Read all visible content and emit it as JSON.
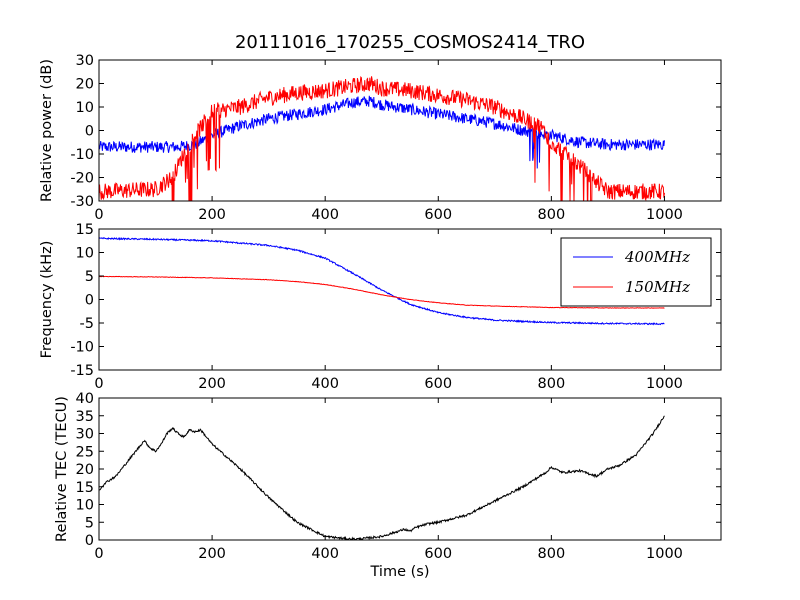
{
  "figure_title": "20111016_170255_COSMOS2414_TRO",
  "colors": {
    "400MHz": "#0000ff",
    "150MHz": "#ff0000",
    "tec": "#000000"
  },
  "chart_data": [
    {
      "type": "line",
      "id": "power",
      "title": "",
      "xlabel": "",
      "ylabel": "Relative power (dB)",
      "xlim": [
        0,
        1100
      ],
      "ylim": [
        -30,
        30
      ],
      "xticks": [
        0,
        200,
        400,
        600,
        800,
        1000
      ],
      "yticks": [
        -30,
        -20,
        -10,
        0,
        10,
        20,
        30
      ],
      "grid": false,
      "legend": "none",
      "series": [
        {
          "color": "#0000ff",
          "noise": 2.5,
          "x": [
            0,
            100,
            140,
            170,
            200,
            250,
            300,
            350,
            400,
            450,
            480,
            500,
            550,
            600,
            650,
            700,
            750,
            800,
            850,
            900,
            1000
          ],
          "y": [
            -7,
            -7,
            -7,
            -6,
            -2,
            2,
            5,
            7,
            9,
            12,
            12.5,
            11,
            9,
            7,
            5,
            3,
            0,
            -2,
            -5,
            -6,
            -6
          ]
        },
        {
          "color": "#ff0000",
          "noise": 3.5,
          "x": [
            0,
            100,
            130,
            150,
            170,
            200,
            250,
            300,
            350,
            400,
            450,
            480,
            500,
            550,
            600,
            650,
            700,
            750,
            780,
            800,
            850,
            880,
            900,
            1000
          ],
          "y": [
            -26,
            -25,
            -20,
            -10,
            -2,
            8,
            10,
            14,
            16,
            17,
            19,
            20,
            18,
            17,
            15,
            13,
            10,
            5,
            2,
            -5,
            -15,
            -22,
            -26,
            -26
          ]
        }
      ]
    },
    {
      "type": "line",
      "id": "frequency",
      "title": "",
      "xlabel": "",
      "ylabel": "Frequency (kHz)",
      "xlim": [
        0,
        1100
      ],
      "ylim": [
        -15,
        15
      ],
      "xticks": [
        0,
        200,
        400,
        600,
        800,
        1000
      ],
      "yticks": [
        -15,
        -10,
        -5,
        0,
        5,
        10,
        15
      ],
      "grid": false,
      "legend": "top-right",
      "series": [
        {
          "name": "400MHz",
          "color": "#0000ff",
          "noise": 0.15,
          "x": [
            0,
            100,
            200,
            300,
            350,
            400,
            450,
            500,
            550,
            600,
            650,
            700,
            800,
            900,
            1000
          ],
          "y": [
            13,
            12.8,
            12.5,
            11.5,
            10.5,
            8.8,
            5.5,
            2,
            -1,
            -2.8,
            -3.8,
            -4.4,
            -4.9,
            -5.1,
            -5.2
          ]
        },
        {
          "name": "150MHz",
          "color": "#ff0000",
          "noise": 0.05,
          "x": [
            0,
            100,
            200,
            300,
            350,
            400,
            450,
            500,
            550,
            600,
            650,
            700,
            800,
            900,
            1000
          ],
          "y": [
            4.9,
            4.8,
            4.6,
            4.2,
            3.8,
            3.2,
            2.2,
            1,
            0,
            -0.7,
            -1.2,
            -1.4,
            -1.7,
            -1.8,
            -1.8
          ]
        }
      ]
    },
    {
      "type": "line",
      "id": "tec",
      "title": "",
      "xlabel": "Time (s)",
      "ylabel": "Relative TEC (TECU)",
      "xlim": [
        0,
        1100
      ],
      "ylim": [
        0,
        40
      ],
      "xticks": [
        0,
        200,
        400,
        600,
        800,
        1000
      ],
      "yticks": [
        0,
        5,
        10,
        15,
        20,
        25,
        30,
        35,
        40
      ],
      "grid": false,
      "legend": "none",
      "series": [
        {
          "color": "#000000",
          "noise": 0.3,
          "x": [
            0,
            10,
            30,
            50,
            70,
            80,
            90,
            100,
            110,
            120,
            130,
            140,
            150,
            160,
            170,
            180,
            200,
            250,
            300,
            350,
            400,
            440,
            460,
            500,
            540,
            550,
            560,
            570,
            580,
            600,
            650,
            700,
            750,
            790,
            800,
            820,
            850,
            880,
            900,
            920,
            950,
            980,
            1000
          ],
          "y": [
            14,
            16,
            18,
            22,
            26,
            28,
            26,
            25,
            27,
            30,
            31.5,
            30,
            29,
            31,
            30.5,
            31,
            27,
            20,
            12,
            5,
            1,
            0.3,
            0.3,
            1,
            3,
            2.5,
            3.5,
            4,
            4.5,
            5,
            7,
            11,
            15,
            19,
            20.5,
            19,
            19.5,
            18,
            20,
            21,
            24,
            30,
            35
          ]
        }
      ]
    }
  ]
}
